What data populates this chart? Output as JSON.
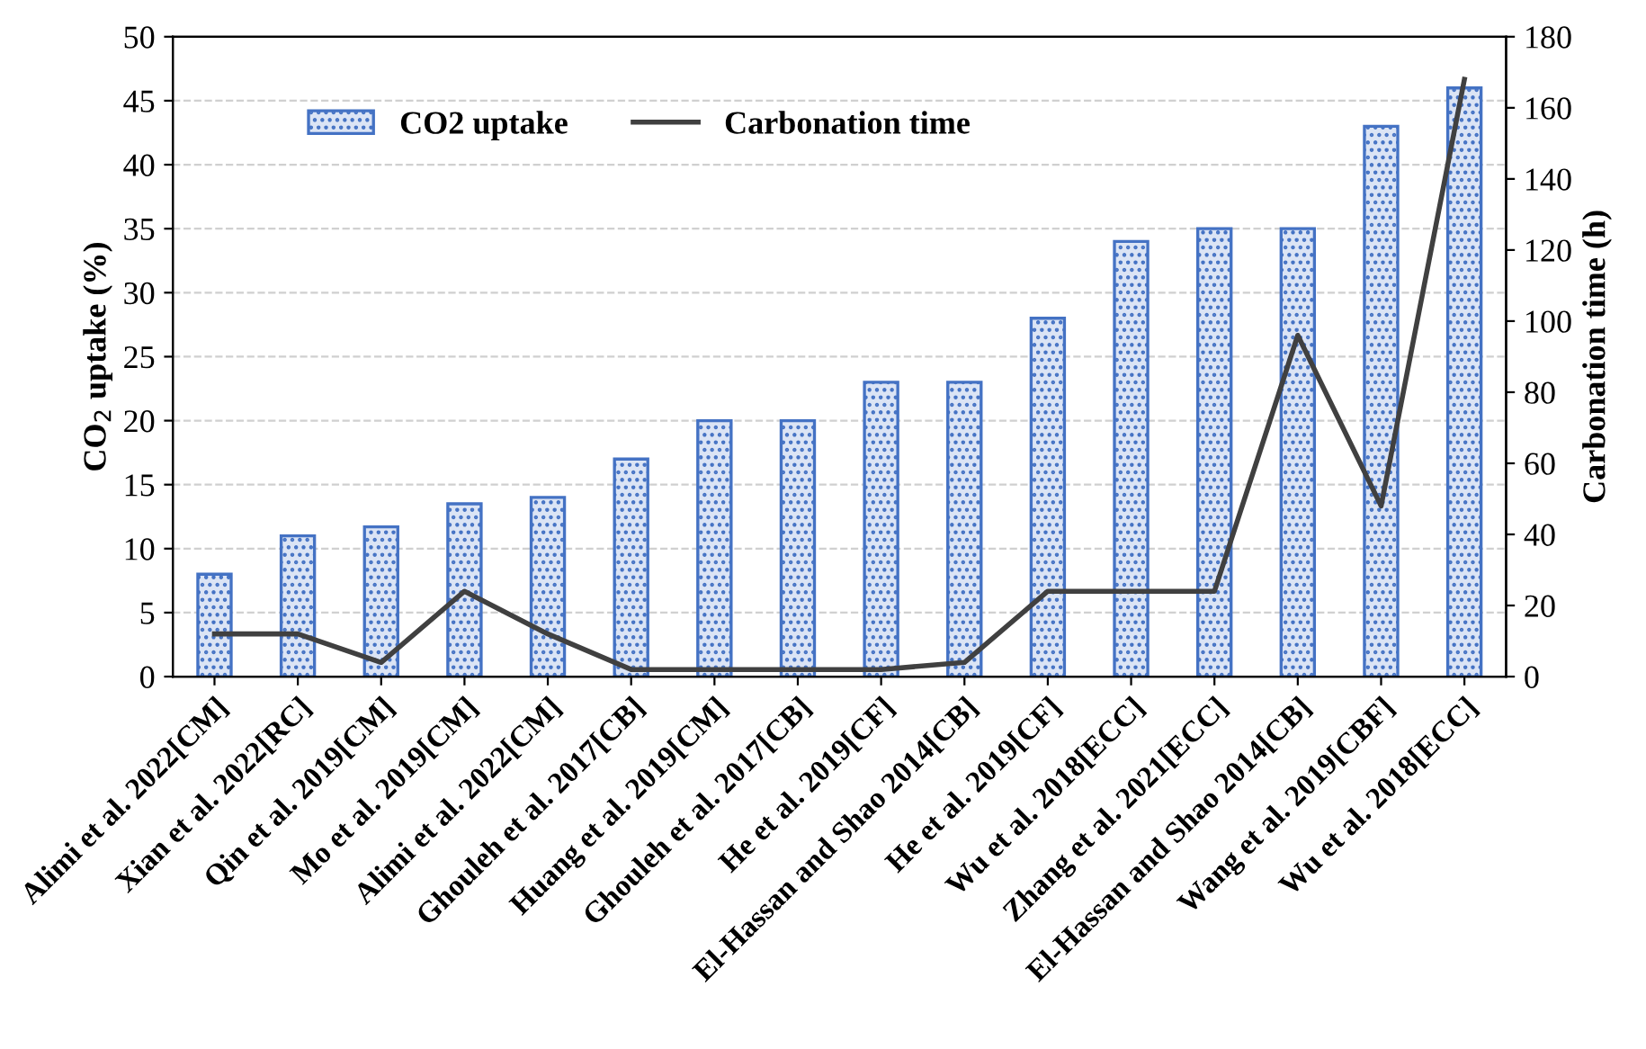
{
  "chart_data": {
    "type": "bar",
    "ylabel": "CO$_{2}$ uptake (%)",
    "y2label": "Carbonation time (h)",
    "categories": [
      "Alimi et al. 2022[CM]",
      "Xian et al. 2022[RC]",
      "Qin et al. 2019[CM]",
      "Mo et al. 2019[CM]",
      "Alimi et al. 2022[CM]",
      "Ghouleh et al. 2017[CB]",
      "Huang et al. 2019[CM]",
      "Ghouleh et al. 2017[CB]",
      "He et al. 2019[CF]",
      "El-Hassan and Shao 2014[CB]",
      "He et al. 2019[CF]",
      "Wu et al. 2018[ECC]",
      "Zhang et al. 2021[ECC]",
      "El-Hassan and Shao 2014[CB]",
      "Wang et al. 2019[CBF]",
      "Wu et al. 2018[ECC]"
    ],
    "series": [
      {
        "name": "CO2 uptake",
        "color": "#4472c4",
        "values": [
          8,
          11,
          11.7,
          13.5,
          14,
          17,
          20,
          20,
          23,
          23,
          28,
          34,
          35,
          35,
          43,
          46
        ]
      },
      {
        "name": "Carbonation time",
        "type": "line",
        "axis": "y2",
        "color": "#404040",
        "values": [
          12,
          12,
          4,
          24,
          12,
          2,
          2,
          2,
          2,
          4,
          24,
          24,
          24,
          96,
          48,
          168
        ]
      }
    ],
    "ylim": [
      0,
      50
    ],
    "yticks": [
      0,
      5,
      10,
      15,
      20,
      25,
      30,
      35,
      40,
      45,
      50
    ],
    "y2lim": [
      0,
      180
    ],
    "y2ticks": [
      0,
      20,
      40,
      60,
      80,
      100,
      120,
      140,
      160,
      180
    ],
    "grid": "y",
    "legend": "top",
    "marker": "none",
    "line_style": "solid"
  }
}
